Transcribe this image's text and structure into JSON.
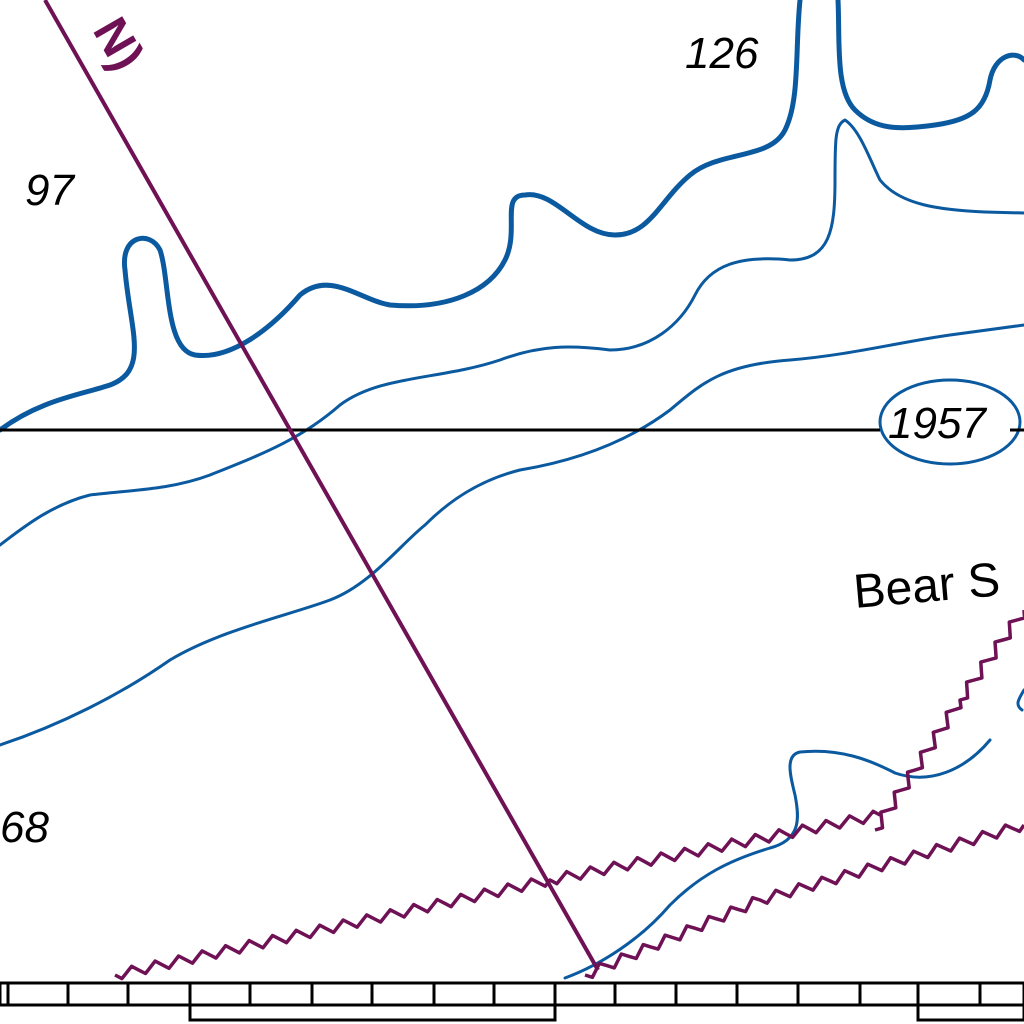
{
  "map": {
    "colors": {
      "background": "#ffffff",
      "contour": "#0b5aa0",
      "route": "#6e1155",
      "text": "#000000",
      "grid": "#000000"
    },
    "labels": {
      "depth_126": "126",
      "depth_97": "97",
      "depth_68": "68",
      "year_1957": "1957",
      "place_bear": "Bear S",
      "route_fragment": "N)"
    },
    "features": {
      "straight_route_line": "route-line",
      "wavy_route_lines": [
        "wavy-route-line",
        "wavy-route-line"
      ],
      "horizontal_line": "reference-line",
      "bottom_scale_bar": "scale-bar"
    }
  }
}
